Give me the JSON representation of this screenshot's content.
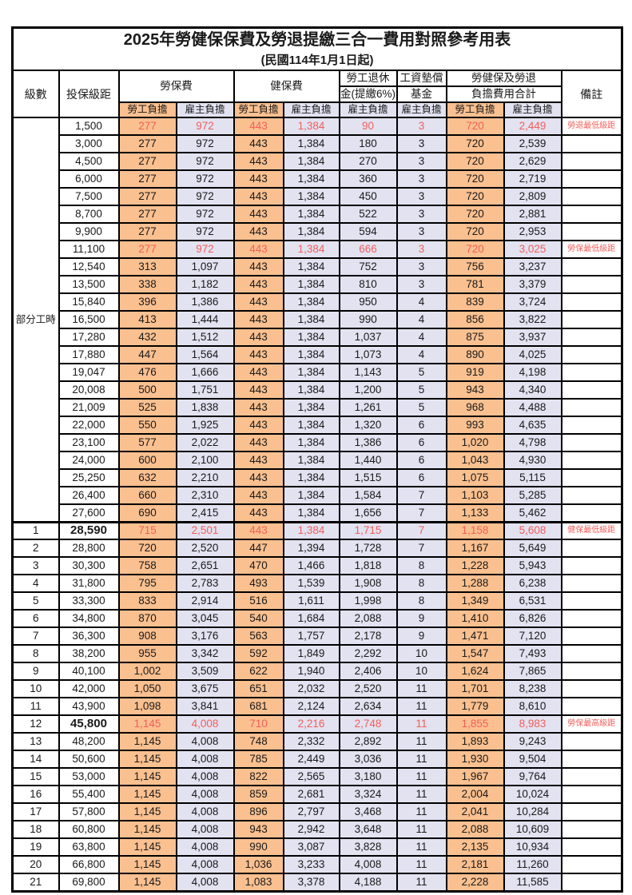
{
  "title": "2025年勞健保保費及勞退提繳三合一費用對照參考用表",
  "subtitle": "(民國114年1月1日起)",
  "colors": {
    "employee_fill_orange": "#FAC090",
    "employer_fill_lavender": "#E2E2F1",
    "highlight_red_text": "#F25F5A",
    "border_black": "#000000"
  },
  "header": {
    "grade": "級數",
    "bracket": "投保級距",
    "labor_insurance": "勞保費",
    "health_insurance": "健保費",
    "pension_line1": "勞工退休",
    "pension_line2": "金(提繳6%)",
    "wage_fund_line1": "工資墊償",
    "wage_fund_line2": "基金",
    "total_line1": "勞健保及勞退",
    "total_line2": "負擔費用合計",
    "remark": "備註",
    "employee_share": "勞工負擔",
    "employer_share": "雇主負擔"
  },
  "part_time": {
    "label": "部分工時",
    "row_span": 23
  },
  "rows": [
    {
      "grade": "",
      "bracket": "1,500",
      "labor_emp": "277",
      "labor_er": "972",
      "health_emp": "443",
      "health_er": "1,384",
      "pension": "90",
      "fund": "3",
      "total_emp": "720",
      "total_er": "2,449",
      "remark": "勞退最低級距",
      "red": true,
      "emph": false
    },
    {
      "grade": "",
      "bracket": "3,000",
      "labor_emp": "277",
      "labor_er": "972",
      "health_emp": "443",
      "health_er": "1,384",
      "pension": "180",
      "fund": "3",
      "total_emp": "720",
      "total_er": "2,539",
      "remark": "",
      "red": false,
      "emph": false
    },
    {
      "grade": "",
      "bracket": "4,500",
      "labor_emp": "277",
      "labor_er": "972",
      "health_emp": "443",
      "health_er": "1,384",
      "pension": "270",
      "fund": "3",
      "total_emp": "720",
      "total_er": "2,629",
      "remark": "",
      "red": false,
      "emph": false
    },
    {
      "grade": "",
      "bracket": "6,000",
      "labor_emp": "277",
      "labor_er": "972",
      "health_emp": "443",
      "health_er": "1,384",
      "pension": "360",
      "fund": "3",
      "total_emp": "720",
      "total_er": "2,719",
      "remark": "",
      "red": false,
      "emph": false
    },
    {
      "grade": "",
      "bracket": "7,500",
      "labor_emp": "277",
      "labor_er": "972",
      "health_emp": "443",
      "health_er": "1,384",
      "pension": "450",
      "fund": "3",
      "total_emp": "720",
      "total_er": "2,809",
      "remark": "",
      "red": false,
      "emph": false
    },
    {
      "grade": "",
      "bracket": "8,700",
      "labor_emp": "277",
      "labor_er": "972",
      "health_emp": "443",
      "health_er": "1,384",
      "pension": "522",
      "fund": "3",
      "total_emp": "720",
      "total_er": "2,881",
      "remark": "",
      "red": false,
      "emph": false
    },
    {
      "grade": "",
      "bracket": "9,900",
      "labor_emp": "277",
      "labor_er": "972",
      "health_emp": "443",
      "health_er": "1,384",
      "pension": "594",
      "fund": "3",
      "total_emp": "720",
      "total_er": "2,953",
      "remark": "",
      "red": false,
      "emph": false
    },
    {
      "grade": "",
      "bracket": "11,100",
      "labor_emp": "277",
      "labor_er": "972",
      "health_emp": "443",
      "health_er": "1,384",
      "pension": "666",
      "fund": "3",
      "total_emp": "720",
      "total_er": "3,025",
      "remark": "勞保最低級距",
      "red": true,
      "emph": false
    },
    {
      "grade": "",
      "bracket": "12,540",
      "labor_emp": "313",
      "labor_er": "1,097",
      "health_emp": "443",
      "health_er": "1,384",
      "pension": "752",
      "fund": "3",
      "total_emp": "756",
      "total_er": "3,237",
      "remark": "",
      "red": false,
      "emph": false
    },
    {
      "grade": "",
      "bracket": "13,500",
      "labor_emp": "338",
      "labor_er": "1,182",
      "health_emp": "443",
      "health_er": "1,384",
      "pension": "810",
      "fund": "3",
      "total_emp": "781",
      "total_er": "3,379",
      "remark": "",
      "red": false,
      "emph": false
    },
    {
      "grade": "",
      "bracket": "15,840",
      "labor_emp": "396",
      "labor_er": "1,386",
      "health_emp": "443",
      "health_er": "1,384",
      "pension": "950",
      "fund": "4",
      "total_emp": "839",
      "total_er": "3,724",
      "remark": "",
      "red": false,
      "emph": false
    },
    {
      "grade": "",
      "bracket": "16,500",
      "labor_emp": "413",
      "labor_er": "1,444",
      "health_emp": "443",
      "health_er": "1,384",
      "pension": "990",
      "fund": "4",
      "total_emp": "856",
      "total_er": "3,822",
      "remark": "",
      "red": false,
      "emph": false
    },
    {
      "grade": "",
      "bracket": "17,280",
      "labor_emp": "432",
      "labor_er": "1,512",
      "health_emp": "443",
      "health_er": "1,384",
      "pension": "1,037",
      "fund": "4",
      "total_emp": "875",
      "total_er": "3,937",
      "remark": "",
      "red": false,
      "emph": false
    },
    {
      "grade": "",
      "bracket": "17,880",
      "labor_emp": "447",
      "labor_er": "1,564",
      "health_emp": "443",
      "health_er": "1,384",
      "pension": "1,073",
      "fund": "4",
      "total_emp": "890",
      "total_er": "4,025",
      "remark": "",
      "red": false,
      "emph": false
    },
    {
      "grade": "",
      "bracket": "19,047",
      "labor_emp": "476",
      "labor_er": "1,666",
      "health_emp": "443",
      "health_er": "1,384",
      "pension": "1,143",
      "fund": "5",
      "total_emp": "919",
      "total_er": "4,198",
      "remark": "",
      "red": false,
      "emph": false
    },
    {
      "grade": "",
      "bracket": "20,008",
      "labor_emp": "500",
      "labor_er": "1,751",
      "health_emp": "443",
      "health_er": "1,384",
      "pension": "1,200",
      "fund": "5",
      "total_emp": "943",
      "total_er": "4,340",
      "remark": "",
      "red": false,
      "emph": false
    },
    {
      "grade": "",
      "bracket": "21,009",
      "labor_emp": "525",
      "labor_er": "1,838",
      "health_emp": "443",
      "health_er": "1,384",
      "pension": "1,261",
      "fund": "5",
      "total_emp": "968",
      "total_er": "4,488",
      "remark": "",
      "red": false,
      "emph": false
    },
    {
      "grade": "",
      "bracket": "22,000",
      "labor_emp": "550",
      "labor_er": "1,925",
      "health_emp": "443",
      "health_er": "1,384",
      "pension": "1,320",
      "fund": "6",
      "total_emp": "993",
      "total_er": "4,635",
      "remark": "",
      "red": false,
      "emph": false
    },
    {
      "grade": "",
      "bracket": "23,100",
      "labor_emp": "577",
      "labor_er": "2,022",
      "health_emp": "443",
      "health_er": "1,384",
      "pension": "1,386",
      "fund": "6",
      "total_emp": "1,020",
      "total_er": "4,798",
      "remark": "",
      "red": false,
      "emph": false
    },
    {
      "grade": "",
      "bracket": "24,000",
      "labor_emp": "600",
      "labor_er": "2,100",
      "health_emp": "443",
      "health_er": "1,384",
      "pension": "1,440",
      "fund": "6",
      "total_emp": "1,043",
      "total_er": "4,930",
      "remark": "",
      "red": false,
      "emph": false
    },
    {
      "grade": "",
      "bracket": "25,250",
      "labor_emp": "632",
      "labor_er": "2,210",
      "health_emp": "443",
      "health_er": "1,384",
      "pension": "1,515",
      "fund": "6",
      "total_emp": "1,075",
      "total_er": "5,115",
      "remark": "",
      "red": false,
      "emph": false
    },
    {
      "grade": "",
      "bracket": "26,400",
      "labor_emp": "660",
      "labor_er": "2,310",
      "health_emp": "443",
      "health_er": "1,384",
      "pension": "1,584",
      "fund": "7",
      "total_emp": "1,103",
      "total_er": "5,285",
      "remark": "",
      "red": false,
      "emph": false
    },
    {
      "grade": "",
      "bracket": "27,600",
      "labor_emp": "690",
      "labor_er": "2,415",
      "health_emp": "443",
      "health_er": "1,384",
      "pension": "1,656",
      "fund": "7",
      "total_emp": "1,133",
      "total_er": "5,462",
      "remark": "",
      "red": false,
      "emph": false
    },
    {
      "grade": "1",
      "bracket": "28,590",
      "labor_emp": "715",
      "labor_er": "2,501",
      "health_emp": "443",
      "health_er": "1,384",
      "pension": "1,715",
      "fund": "7",
      "total_emp": "1,158",
      "total_er": "5,608",
      "remark": "健保最低級距",
      "red": true,
      "emph": true
    },
    {
      "grade": "2",
      "bracket": "28,800",
      "labor_emp": "720",
      "labor_er": "2,520",
      "health_emp": "447",
      "health_er": "1,394",
      "pension": "1,728",
      "fund": "7",
      "total_emp": "1,167",
      "total_er": "5,649",
      "remark": "",
      "red": false,
      "emph": false
    },
    {
      "grade": "3",
      "bracket": "30,300",
      "labor_emp": "758",
      "labor_er": "2,651",
      "health_emp": "470",
      "health_er": "1,466",
      "pension": "1,818",
      "fund": "8",
      "total_emp": "1,228",
      "total_er": "5,943",
      "remark": "",
      "red": false,
      "emph": false
    },
    {
      "grade": "4",
      "bracket": "31,800",
      "labor_emp": "795",
      "labor_er": "2,783",
      "health_emp": "493",
      "health_er": "1,539",
      "pension": "1,908",
      "fund": "8",
      "total_emp": "1,288",
      "total_er": "6,238",
      "remark": "",
      "red": false,
      "emph": false
    },
    {
      "grade": "5",
      "bracket": "33,300",
      "labor_emp": "833",
      "labor_er": "2,914",
      "health_emp": "516",
      "health_er": "1,611",
      "pension": "1,998",
      "fund": "8",
      "total_emp": "1,349",
      "total_er": "6,531",
      "remark": "",
      "red": false,
      "emph": false
    },
    {
      "grade": "6",
      "bracket": "34,800",
      "labor_emp": "870",
      "labor_er": "3,045",
      "health_emp": "540",
      "health_er": "1,684",
      "pension": "2,088",
      "fund": "9",
      "total_emp": "1,410",
      "total_er": "6,826",
      "remark": "",
      "red": false,
      "emph": false
    },
    {
      "grade": "7",
      "bracket": "36,300",
      "labor_emp": "908",
      "labor_er": "3,176",
      "health_emp": "563",
      "health_er": "1,757",
      "pension": "2,178",
      "fund": "9",
      "total_emp": "1,471",
      "total_er": "7,120",
      "remark": "",
      "red": false,
      "emph": false
    },
    {
      "grade": "8",
      "bracket": "38,200",
      "labor_emp": "955",
      "labor_er": "3,342",
      "health_emp": "592",
      "health_er": "1,849",
      "pension": "2,292",
      "fund": "10",
      "total_emp": "1,547",
      "total_er": "7,493",
      "remark": "",
      "red": false,
      "emph": false
    },
    {
      "grade": "9",
      "bracket": "40,100",
      "labor_emp": "1,002",
      "labor_er": "3,509",
      "health_emp": "622",
      "health_er": "1,940",
      "pension": "2,406",
      "fund": "10",
      "total_emp": "1,624",
      "total_er": "7,865",
      "remark": "",
      "red": false,
      "emph": false
    },
    {
      "grade": "10",
      "bracket": "42,000",
      "labor_emp": "1,050",
      "labor_er": "3,675",
      "health_emp": "651",
      "health_er": "2,032",
      "pension": "2,520",
      "fund": "11",
      "total_emp": "1,701",
      "total_er": "8,238",
      "remark": "",
      "red": false,
      "emph": false
    },
    {
      "grade": "11",
      "bracket": "43,900",
      "labor_emp": "1,098",
      "labor_er": "3,841",
      "health_emp": "681",
      "health_er": "2,124",
      "pension": "2,634",
      "fund": "11",
      "total_emp": "1,779",
      "total_er": "8,610",
      "remark": "",
      "red": false,
      "emph": false
    },
    {
      "grade": "12",
      "bracket": "45,800",
      "labor_emp": "1,145",
      "labor_er": "4,008",
      "health_emp": "710",
      "health_er": "2,216",
      "pension": "2,748",
      "fund": "11",
      "total_emp": "1,855",
      "total_er": "8,983",
      "remark": "勞保最高級距",
      "red": true,
      "emph": true
    },
    {
      "grade": "13",
      "bracket": "48,200",
      "labor_emp": "1,145",
      "labor_er": "4,008",
      "health_emp": "748",
      "health_er": "2,332",
      "pension": "2,892",
      "fund": "11",
      "total_emp": "1,893",
      "total_er": "9,243",
      "remark": "",
      "red": false,
      "emph": false
    },
    {
      "grade": "14",
      "bracket": "50,600",
      "labor_emp": "1,145",
      "labor_er": "4,008",
      "health_emp": "785",
      "health_er": "2,449",
      "pension": "3,036",
      "fund": "11",
      "total_emp": "1,930",
      "total_er": "9,504",
      "remark": "",
      "red": false,
      "emph": false
    },
    {
      "grade": "15",
      "bracket": "53,000",
      "labor_emp": "1,145",
      "labor_er": "4,008",
      "health_emp": "822",
      "health_er": "2,565",
      "pension": "3,180",
      "fund": "11",
      "total_emp": "1,967",
      "total_er": "9,764",
      "remark": "",
      "red": false,
      "emph": false
    },
    {
      "grade": "16",
      "bracket": "55,400",
      "labor_emp": "1,145",
      "labor_er": "4,008",
      "health_emp": "859",
      "health_er": "2,681",
      "pension": "3,324",
      "fund": "11",
      "total_emp": "2,004",
      "total_er": "10,024",
      "remark": "",
      "red": false,
      "emph": false
    },
    {
      "grade": "17",
      "bracket": "57,800",
      "labor_emp": "1,145",
      "labor_er": "4,008",
      "health_emp": "896",
      "health_er": "2,797",
      "pension": "3,468",
      "fund": "11",
      "total_emp": "2,041",
      "total_er": "10,284",
      "remark": "",
      "red": false,
      "emph": false
    },
    {
      "grade": "18",
      "bracket": "60,800",
      "labor_emp": "1,145",
      "labor_er": "4,008",
      "health_emp": "943",
      "health_er": "2,942",
      "pension": "3,648",
      "fund": "11",
      "total_emp": "2,088",
      "total_er": "10,609",
      "remark": "",
      "red": false,
      "emph": false
    },
    {
      "grade": "19",
      "bracket": "63,800",
      "labor_emp": "1,145",
      "labor_er": "4,008",
      "health_emp": "990",
      "health_er": "3,087",
      "pension": "3,828",
      "fund": "11",
      "total_emp": "2,135",
      "total_er": "10,934",
      "remark": "",
      "red": false,
      "emph": false
    },
    {
      "grade": "20",
      "bracket": "66,800",
      "labor_emp": "1,145",
      "labor_er": "4,008",
      "health_emp": "1,036",
      "health_er": "3,233",
      "pension": "4,008",
      "fund": "11",
      "total_emp": "2,181",
      "total_er": "11,260",
      "remark": "",
      "red": false,
      "emph": false
    },
    {
      "grade": "21",
      "bracket": "69,800",
      "labor_emp": "1,145",
      "labor_er": "4,008",
      "health_emp": "1,083",
      "health_er": "3,378",
      "pension": "4,188",
      "fund": "11",
      "total_emp": "2,228",
      "total_er": "11,585",
      "remark": "",
      "red": false,
      "emph": false
    }
  ]
}
